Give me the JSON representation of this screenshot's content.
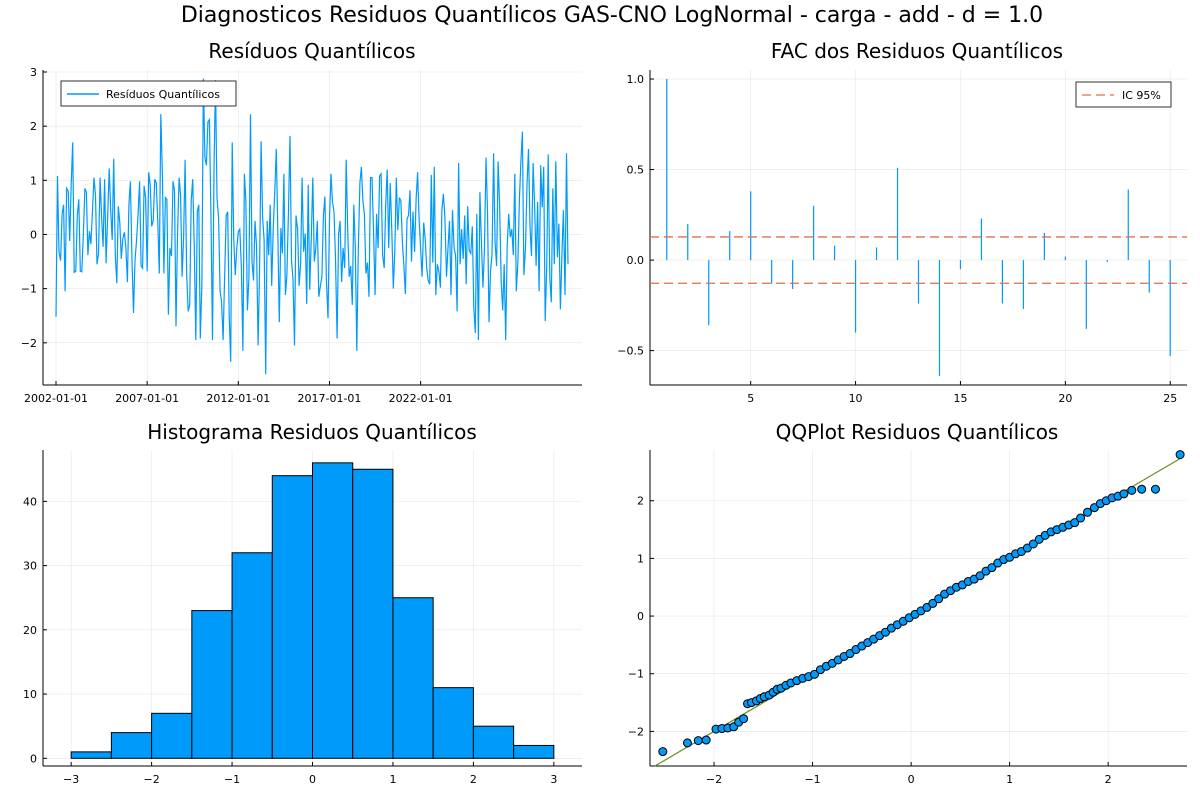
{
  "figure": {
    "title": "Diagnosticos Residuos  Quantílicos GAS-CNO LogNormal - carga - add - d = 1.0"
  },
  "chart_data": [
    {
      "type": "line",
      "title": "Resíduos  Quantílicos",
      "legend": [
        "Resíduos Quantílicos"
      ],
      "legend_position": "top-left",
      "grid": true,
      "color": "#009AFA",
      "x_start": "2002-01-01",
      "x_frequency": "monthly",
      "x_ticks": [
        "2002-01-01",
        "2007-01-01",
        "2012-01-01",
        "2017-01-01",
        "2022-01-01"
      ],
      "y_ticks": [
        3,
        2,
        1,
        0,
        -1,
        -2
      ],
      "ylim": [
        -2.65,
        3.0
      ],
      "values": [
        -1.52,
        1.08,
        -0.32,
        -0.48,
        0.38,
        0.55,
        -1.05,
        0.85,
        0.8,
        -0.12,
        0.92,
        1.7,
        -0.7,
        -0.68,
        0.35,
        0.65,
        -0.68,
        -0.69,
        -0.02,
        0.85,
        0.78,
        -0.38,
        0.06,
        -0.18,
        0.45,
        1.05,
        0.72,
        -0.55,
        -0.35,
        1.05,
        0.32,
        -0.23,
        1.02,
        -0.53,
        0.35,
        1.22,
        0.45,
        -0.1,
        1.4,
        -0.38,
        -0.9,
        0.52,
        0.22,
        -0.45,
        -0.08,
        0.04,
        -0.25,
        -0.88,
        0.55,
        0.98,
        -0.48,
        -1.45,
        -0.48,
        -0.12,
        0.35,
        0.98,
        -0.58,
        -0.62,
        0.9,
        0.68,
        -0.68,
        1.15,
        0.92,
        0.15,
        0.25,
        1.02,
        0.95,
        0.22,
        -0.72,
        2.22,
        1.1,
        -0.72,
        0.68,
        0.65,
        -1.48,
        -0.25,
        -0.4,
        0.98,
        0.82,
        -1.7,
        -0.02,
        1.05,
        0.72,
        -0.78,
        -0.05,
        1.38,
        -0.75,
        -1.42,
        -1.3,
        0.62,
        1.02,
        -0.25,
        -1.95,
        0.42,
        0.55,
        -1.92,
        -0.9,
        2.88,
        1.42,
        1.28,
        2.08,
        2.12,
        0.3,
        -1.95,
        1.2,
        2.85,
        0.68,
        0.3,
        -1.05,
        -1.25,
        -1.95,
        -0.8,
        0.35,
        0.42,
        -1.5,
        -2.35,
        1.7,
        -0.12,
        -0.75,
        -0.25,
        0.05,
        0.1,
        -0.62,
        -2.15,
        1.12,
        0.6,
        -1.4,
        -0.82,
        2.22,
        -0.5,
        -0.85,
        0.25,
        -0.2,
        -2.05,
        -0.6,
        1.72,
        0.32,
        -0.1,
        -2.58,
        0.25,
        -0.38,
        0.55,
        -0.95,
        0.15,
        0.8,
        1.58,
        0.05,
        -1.62,
        0.12,
        -0.35,
        1.12,
        -1.12,
        -0.75,
        0.45,
        1.82,
        -0.48,
        -0.82,
        -2.05,
        0.35,
        0.1,
        -0.95,
        -0.55,
        1.05,
        -0.32,
        0.02,
        -1.28,
        0.92,
        -1.02,
        -0.12,
        1.05,
        -0.5,
        -0.25,
        0.25,
        -1.15,
        -0.95,
        -0.78,
        0.35,
        0.7,
        -0.85,
        -1.55,
        0.28,
        1.12,
        0.6,
        0.42,
        -0.45,
        -1.92,
        0.02,
        0.25,
        -0.88,
        -0.25,
        -0.62,
        1.38,
        0.08,
        -0.78,
        -0.58,
        -1.3,
        0.55,
        -0.25,
        -2.15,
        -0.28,
        0.95,
        1.25,
        0.62,
        0.38,
        -0.72,
        -0.52,
        -1.15,
        1.05,
        1.05,
        0.08,
        -1.12,
        0.38,
        -0.25,
        1.08,
        1.12,
        -0.38,
        -0.62,
        0.55,
        1.2,
        -0.25,
        0.95,
        0.08,
        -1.0,
        -0.32,
        1.05,
        0.08,
        0.68,
        0.62,
        -0.15,
        -0.58,
        -1.1,
        0.28,
        0.35,
        0.82,
        -0.5,
        0.42,
        -0.32,
        0.65,
        1.15,
        0.28,
        -0.25,
        -0.78,
        0.22,
        -0.08,
        -0.62,
        -0.85,
        -0.92,
        1.1,
        -0.52,
        1.25,
        -1.12,
        -0.55,
        -0.68,
        -0.98,
        0.45,
        0.75,
        0.32,
        -0.78,
        -0.25,
        0.25,
        -1.12,
        0.45,
        -0.25,
        -0.38,
        -1.42,
        1.32,
        -0.55,
        0.1,
        -0.45,
        0.35,
        -0.92,
        0.52,
        -0.3,
        -0.35,
        0.15,
        -1.35,
        -1.82,
        0.38,
        -1.95,
        0.78,
        -0.12,
        -0.98,
        -0.32,
        1.42,
        0.42,
        -1.62,
        -0.68,
        -0.38,
        1.5,
        -0.15,
        -0.58,
        1.35,
        0.55,
        -0.88,
        -1.4,
        -0.55,
        -1.95,
        -0.22,
        0.38,
        -0.05,
        0.1,
        -0.38,
        1.12,
        -1.05,
        -0.5,
        0.65,
        1.35,
        1.9,
        -0.75,
        -0.25,
        0.92,
        1.58,
        0.15,
        -0.4,
        1.32,
        0.55,
        -0.58,
        0.6,
        -1.05,
        1.28,
        0.5,
        1.25,
        -1.6,
        -0.62,
        1.48,
        -0.8,
        -1.25,
        0.85,
        -0.55,
        1.35,
        -0.42,
        0.2,
        -1.38,
        -0.38,
        0.45,
        -1.12,
        1.5,
        -0.55
      ]
    },
    {
      "type": "bar",
      "title": "FAC dos Residuos Quantílicos",
      "legend": [
        "IC 95%"
      ],
      "legend_position": "top-right",
      "grid": true,
      "color": "#009AFA",
      "ci_color": "#E26F46",
      "ci_bounds": [
        0.128,
        -0.128
      ],
      "x": [
        1,
        2,
        3,
        4,
        5,
        6,
        7,
        8,
        9,
        10,
        11,
        12,
        13,
        14,
        15,
        16,
        17,
        18,
        19,
        20,
        21,
        22,
        23,
        24,
        25
      ],
      "values": [
        1.0,
        0.2,
        -0.36,
        0.16,
        0.38,
        -0.13,
        -0.16,
        0.3,
        0.08,
        -0.4,
        0.07,
        0.51,
        -0.24,
        -0.64,
        -0.05,
        0.23,
        -0.24,
        -0.27,
        0.15,
        0.02,
        -0.38,
        -0.01,
        0.39,
        -0.18,
        -0.53
      ],
      "x_ticks": [
        5,
        10,
        15,
        20,
        25
      ],
      "y_ticks": [
        1.0,
        0.5,
        0.0,
        -0.5
      ],
      "xlim": [
        0.2,
        25.8
      ],
      "ylim": [
        -0.69,
        1.05
      ]
    },
    {
      "type": "bar",
      "title": "Histograma Residuos Quantílicos",
      "grid": true,
      "color": "#009AFA",
      "bin_edges": [
        -3,
        -2.5,
        -2,
        -1.5,
        -1,
        -0.5,
        0,
        0.5,
        1,
        1.5,
        2,
        2.5,
        3
      ],
      "values": [
        1,
        4,
        7,
        23,
        32,
        44,
        46,
        45,
        25,
        11,
        5,
        2
      ],
      "x_ticks": [
        -3,
        -2,
        -1,
        0,
        1,
        2,
        3
      ],
      "y_ticks": [
        40,
        30,
        20,
        10,
        0
      ],
      "xlim": [
        -3.35,
        3.35
      ],
      "ylim": [
        -1.2,
        48
      ]
    },
    {
      "type": "scatter",
      "title": "QQPlot Residuos Quantílicos",
      "grid": true,
      "color": "#009AFA",
      "line_color": "#6B8E23",
      "reference_line": [
        [
          -2.6,
          -2.6
        ],
        [
          2.75,
          2.75
        ]
      ],
      "points": [
        [
          -2.52,
          -2.35
        ],
        [
          -2.27,
          -2.2
        ],
        [
          -2.16,
          -2.16
        ],
        [
          -2.08,
          -2.15
        ],
        [
          -1.98,
          -1.96
        ],
        [
          -1.92,
          -1.95
        ],
        [
          -1.86,
          -1.94
        ],
        [
          -1.8,
          -1.92
        ],
        [
          -1.75,
          -1.84
        ],
        [
          -1.7,
          -1.78
        ],
        [
          -1.66,
          -1.52
        ],
        [
          -1.62,
          -1.5
        ],
        [
          -1.57,
          -1.47
        ],
        [
          -1.53,
          -1.43
        ],
        [
          -1.49,
          -1.4
        ],
        [
          -1.44,
          -1.37
        ],
        [
          -1.4,
          -1.32
        ],
        [
          -1.36,
          -1.27
        ],
        [
          -1.32,
          -1.25
        ],
        [
          -1.27,
          -1.2
        ],
        [
          -1.22,
          -1.16
        ],
        [
          -1.16,
          -1.12
        ],
        [
          -1.1,
          -1.08
        ],
        [
          -1.04,
          -1.05
        ],
        [
          -0.98,
          -1.01
        ],
        [
          -0.92,
          -0.93
        ],
        [
          -0.86,
          -0.87
        ],
        [
          -0.8,
          -0.82
        ],
        [
          -0.74,
          -0.76
        ],
        [
          -0.68,
          -0.7
        ],
        [
          -0.62,
          -0.65
        ],
        [
          -0.56,
          -0.58
        ],
        [
          -0.5,
          -0.52
        ],
        [
          -0.44,
          -0.46
        ],
        [
          -0.38,
          -0.4
        ],
        [
          -0.32,
          -0.34
        ],
        [
          -0.26,
          -0.28
        ],
        [
          -0.2,
          -0.21
        ],
        [
          -0.14,
          -0.15
        ],
        [
          -0.08,
          -0.09
        ],
        [
          -0.02,
          -0.03
        ],
        [
          0.04,
          0.03
        ],
        [
          0.1,
          0.09
        ],
        [
          0.16,
          0.15
        ],
        [
          0.22,
          0.22
        ],
        [
          0.28,
          0.3
        ],
        [
          0.34,
          0.38
        ],
        [
          0.4,
          0.44
        ],
        [
          0.46,
          0.5
        ],
        [
          0.52,
          0.54
        ],
        [
          0.58,
          0.6
        ],
        [
          0.64,
          0.64
        ],
        [
          0.7,
          0.7
        ],
        [
          0.76,
          0.78
        ],
        [
          0.82,
          0.84
        ],
        [
          0.88,
          0.92
        ],
        [
          0.94,
          0.98
        ],
        [
          1.0,
          1.02
        ],
        [
          1.06,
          1.08
        ],
        [
          1.12,
          1.12
        ],
        [
          1.18,
          1.18
        ],
        [
          1.24,
          1.25
        ],
        [
          1.3,
          1.33
        ],
        [
          1.36,
          1.4
        ],
        [
          1.42,
          1.46
        ],
        [
          1.48,
          1.5
        ],
        [
          1.54,
          1.54
        ],
        [
          1.6,
          1.58
        ],
        [
          1.66,
          1.62
        ],
        [
          1.72,
          1.7
        ],
        [
          1.79,
          1.8
        ],
        [
          1.86,
          1.88
        ],
        [
          1.92,
          1.95
        ],
        [
          1.98,
          2.0
        ],
        [
          2.04,
          2.05
        ],
        [
          2.1,
          2.08
        ],
        [
          2.16,
          2.12
        ],
        [
          2.24,
          2.18
        ],
        [
          2.34,
          2.2
        ],
        [
          2.48,
          2.2
        ],
        [
          2.73,
          2.8
        ]
      ],
      "x_ticks": [
        -2,
        -1,
        0,
        1,
        2
      ],
      "y_ticks": [
        2,
        1,
        0,
        -1,
        -2
      ],
      "xlim": [
        -2.65,
        2.8
      ],
      "ylim": [
        -2.6,
        2.88
      ]
    }
  ]
}
